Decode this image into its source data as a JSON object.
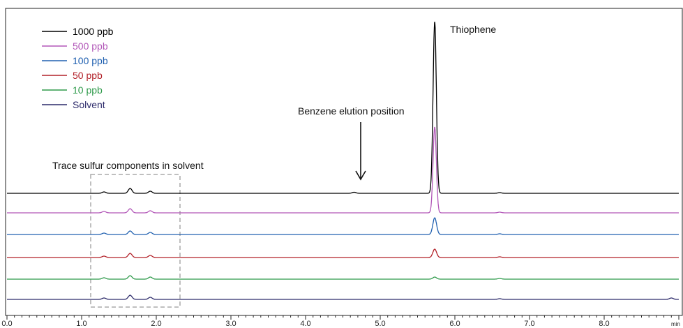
{
  "chart_data": {
    "type": "line",
    "title": "",
    "xlabel": "",
    "ylabel": "",
    "x_unit": "min",
    "xlim": [
      0.0,
      9.0
    ],
    "x_ticks": [
      "0.0",
      "1.0",
      "2.0",
      "3.0",
      "4.0",
      "5.0",
      "6.0",
      "7.0",
      "8.0"
    ],
    "grid": false,
    "legend_position": "top-left",
    "stacked_offset_traces": true,
    "series": [
      {
        "name": "1000 ppb",
        "color": "#000000",
        "thiophene_peak_height": 246,
        "peaks": [
          {
            "x": 1.3,
            "h": 2
          },
          {
            "x": 1.65,
            "h": 7
          },
          {
            "x": 1.92,
            "h": 3
          },
          {
            "x": 4.65,
            "h": 1.5
          },
          {
            "x": 5.73,
            "h": 246
          },
          {
            "x": 6.6,
            "h": 1
          }
        ]
      },
      {
        "name": "500 ppb",
        "color": "#b257b8",
        "thiophene_peak_height": 123,
        "peaks": [
          {
            "x": 1.3,
            "h": 2
          },
          {
            "x": 1.65,
            "h": 6
          },
          {
            "x": 1.92,
            "h": 3
          },
          {
            "x": 5.73,
            "h": 123
          },
          {
            "x": 6.6,
            "h": 1
          }
        ]
      },
      {
        "name": "100 ppb",
        "color": "#2060b0",
        "thiophene_peak_height": 24,
        "peaks": [
          {
            "x": 1.3,
            "h": 2
          },
          {
            "x": 1.65,
            "h": 5
          },
          {
            "x": 1.92,
            "h": 3
          },
          {
            "x": 5.73,
            "h": 24
          },
          {
            "x": 6.6,
            "h": 1
          }
        ]
      },
      {
        "name": "50 ppb",
        "color": "#b22028",
        "thiophene_peak_height": 12,
        "peaks": [
          {
            "x": 1.3,
            "h": 2
          },
          {
            "x": 1.65,
            "h": 6
          },
          {
            "x": 1.92,
            "h": 3
          },
          {
            "x": 5.73,
            "h": 12
          },
          {
            "x": 6.6,
            "h": 1
          }
        ]
      },
      {
        "name": "10 ppb",
        "color": "#2e9a4a",
        "thiophene_peak_height": 3,
        "peaks": [
          {
            "x": 1.3,
            "h": 2
          },
          {
            "x": 1.65,
            "h": 5
          },
          {
            "x": 1.92,
            "h": 3
          },
          {
            "x": 5.73,
            "h": 3
          },
          {
            "x": 6.6,
            "h": 1
          }
        ]
      },
      {
        "name": "Solvent",
        "color": "#2c2a6a",
        "thiophene_peak_height": 0,
        "peaks": [
          {
            "x": 1.3,
            "h": 2
          },
          {
            "x": 1.65,
            "h": 6
          },
          {
            "x": 1.92,
            "h": 3
          },
          {
            "x": 6.6,
            "h": 1
          },
          {
            "x": 8.9,
            "h": 2
          }
        ]
      }
    ],
    "annotations": [
      {
        "name": "thiophene-label",
        "text": "Thiophene",
        "x": 5.73
      },
      {
        "name": "benzene-label",
        "text": "Benzene elution position",
        "x": 4.65
      },
      {
        "name": "trace-sulfur-label",
        "text": "Trace sulfur components in solvent",
        "x_range": [
          1.05,
          2.25
        ]
      }
    ]
  }
}
